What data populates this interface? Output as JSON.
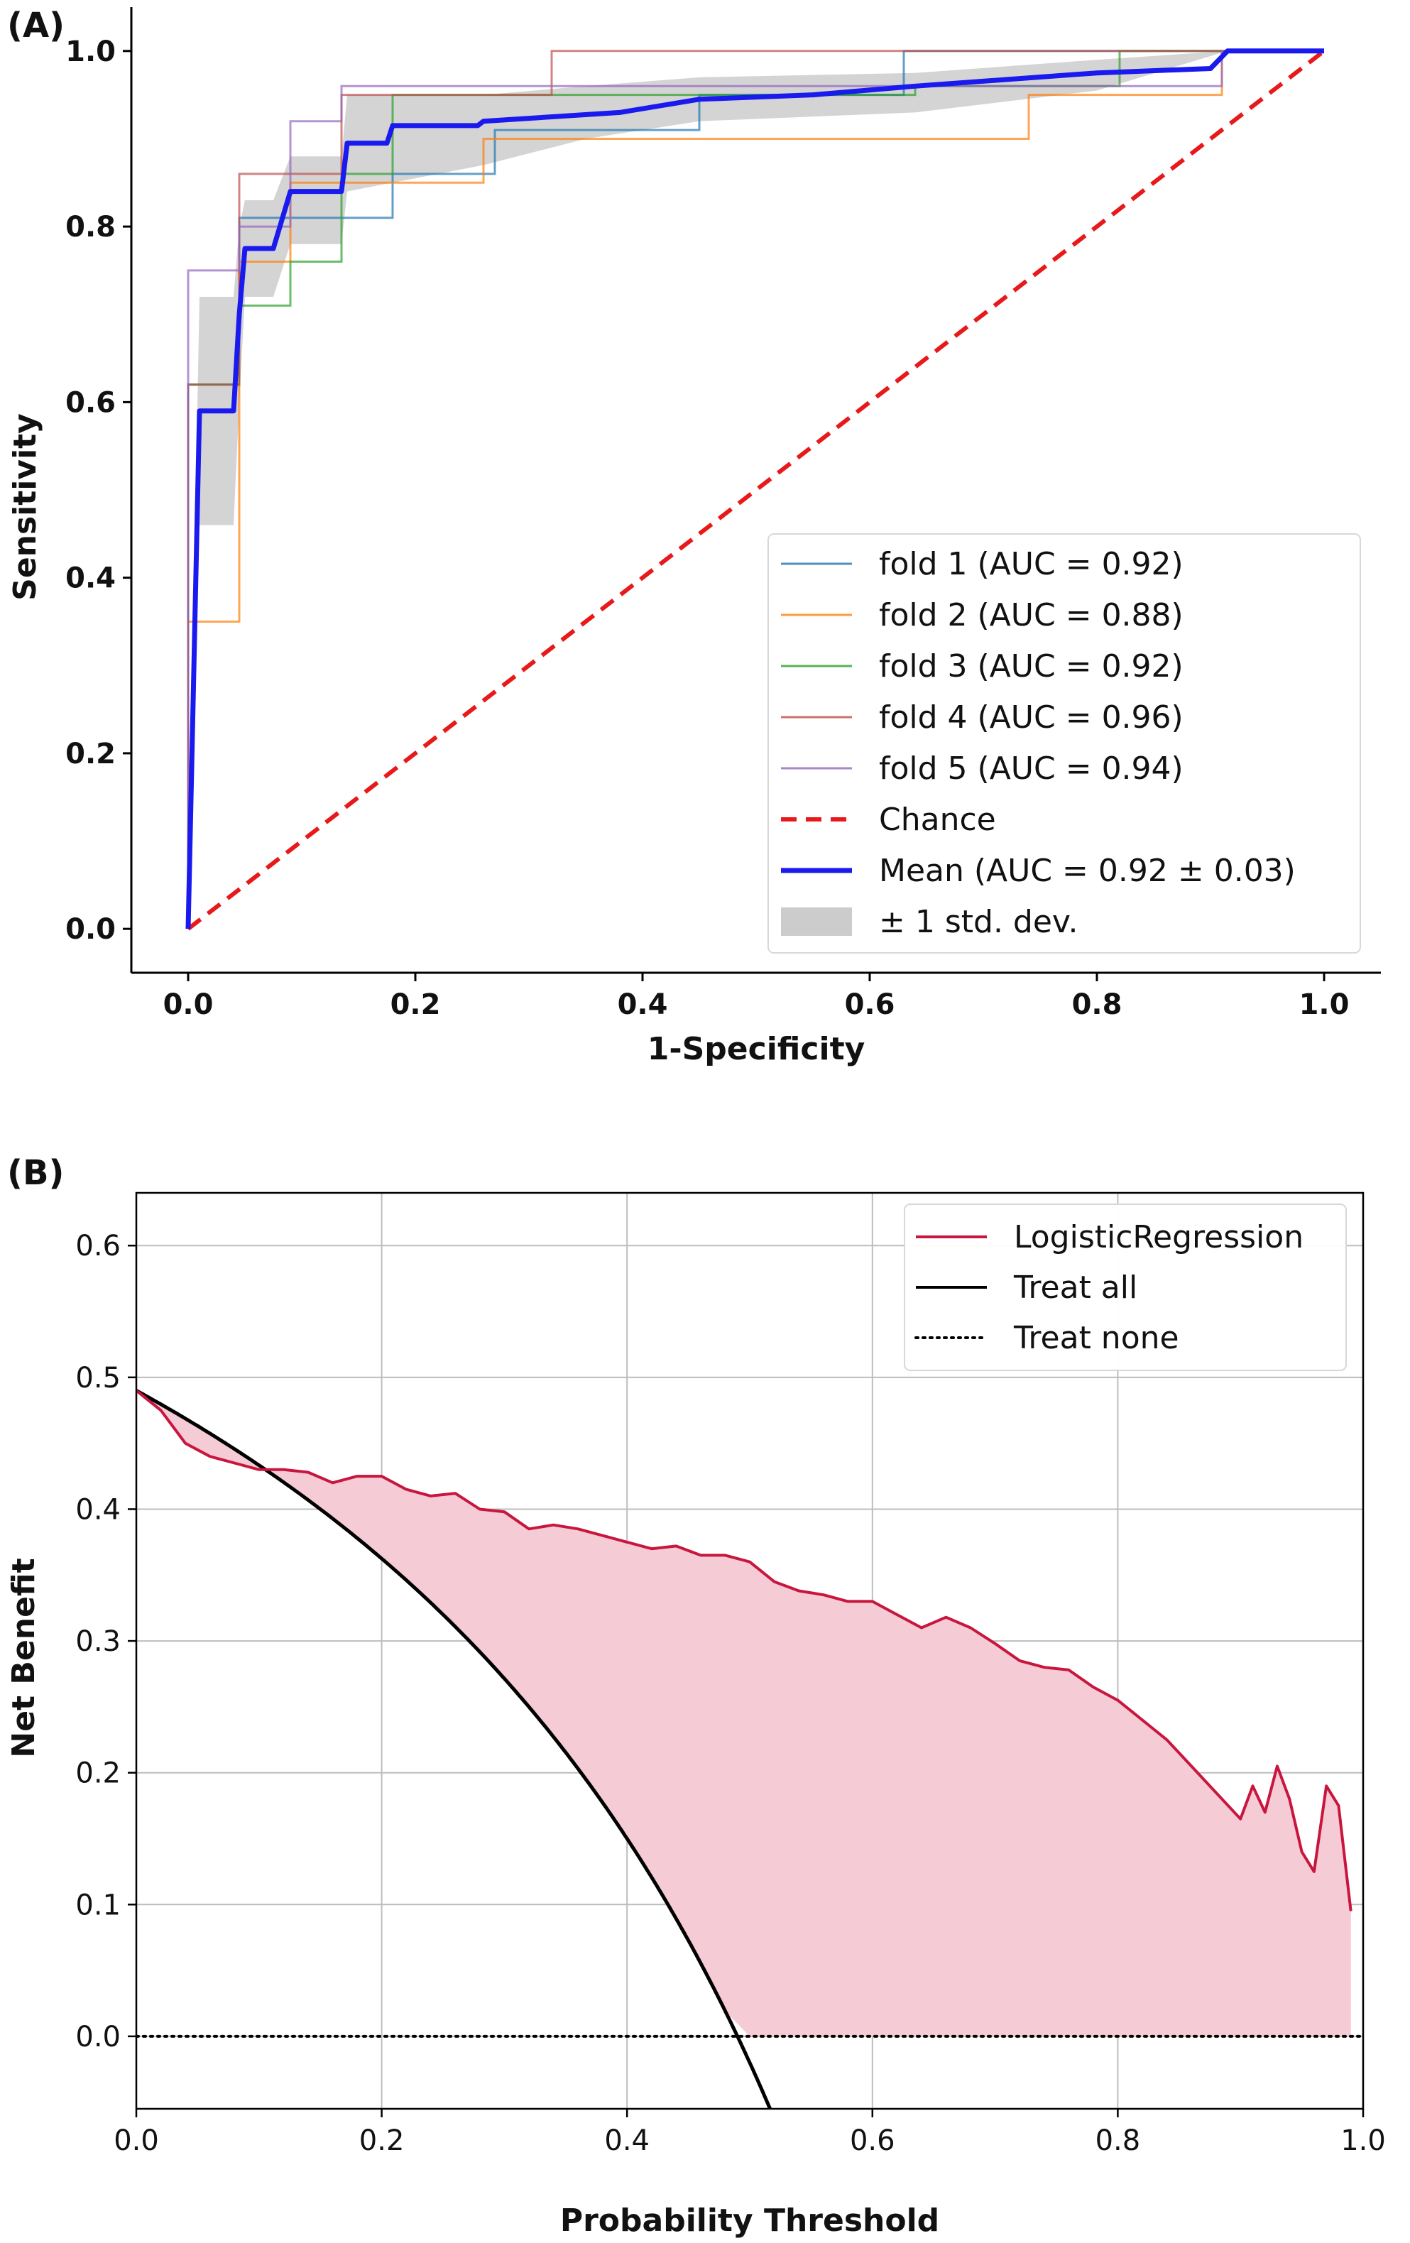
{
  "chart_data": [
    {
      "panel_label": "(A)",
      "type": "line",
      "xlabel": "1-Specificity",
      "ylabel": "Sensitivity",
      "xlim": [
        -0.05,
        1.05
      ],
      "ylim": [
        -0.05,
        1.05
      ],
      "xticks": [
        "0.0",
        "0.2",
        "0.4",
        "0.6",
        "0.8",
        "1.0"
      ],
      "yticks": [
        "0.0",
        "0.2",
        "0.4",
        "0.6",
        "0.8",
        "1.0"
      ],
      "grid": false,
      "legend_position": "lower-right",
      "series": [
        {
          "name": "fold 1 (AUC = 0.92)",
          "color": "#1f77b4",
          "style": "step",
          "points": [
            [
              0,
              0
            ],
            [
              0,
              0.62
            ],
            [
              0.045,
              0.62
            ],
            [
              0.045,
              0.81
            ],
            [
              0.14,
              0.81
            ],
            [
              0.14,
              0.81
            ],
            [
              0.18,
              0.81
            ],
            [
              0.18,
              0.86
            ],
            [
              0.27,
              0.86
            ],
            [
              0.27,
              0.91
            ],
            [
              0.45,
              0.91
            ],
            [
              0.45,
              0.95
            ],
            [
              0.63,
              0.95
            ],
            [
              0.63,
              1.0
            ],
            [
              1.0,
              1.0
            ]
          ]
        },
        {
          "name": "fold 2 (AUC = 0.88)",
          "color": "#ff7f0e",
          "style": "step",
          "points": [
            [
              0,
              0
            ],
            [
              0,
              0.35
            ],
            [
              0.045,
              0.35
            ],
            [
              0.045,
              0.76
            ],
            [
              0.09,
              0.76
            ],
            [
              0.09,
              0.85
            ],
            [
              0.18,
              0.85
            ],
            [
              0.18,
              0.85
            ],
            [
              0.26,
              0.85
            ],
            [
              0.26,
              0.9
            ],
            [
              0.74,
              0.9
            ],
            [
              0.74,
              0.95
            ],
            [
              0.91,
              0.95
            ],
            [
              0.91,
              1.0
            ],
            [
              1.0,
              1.0
            ]
          ]
        },
        {
          "name": "fold 3 (AUC = 0.92)",
          "color": "#2ca02c",
          "style": "step",
          "points": [
            [
              0,
              0
            ],
            [
              0,
              0.62
            ],
            [
              0.045,
              0.62
            ],
            [
              0.045,
              0.71
            ],
            [
              0.09,
              0.71
            ],
            [
              0.09,
              0.76
            ],
            [
              0.135,
              0.76
            ],
            [
              0.135,
              0.86
            ],
            [
              0.18,
              0.86
            ],
            [
              0.18,
              0.95
            ],
            [
              0.64,
              0.95
            ],
            [
              0.64,
              0.96
            ],
            [
              0.82,
              0.96
            ],
            [
              0.82,
              1.0
            ],
            [
              1.0,
              1.0
            ]
          ]
        },
        {
          "name": "fold 4 (AUC = 0.96)",
          "color": "#c0504d",
          "style": "step",
          "points": [
            [
              0,
              0
            ],
            [
              0,
              0.62
            ],
            [
              0.045,
              0.62
            ],
            [
              0.045,
              0.86
            ],
            [
              0.09,
              0.86
            ],
            [
              0.09,
              0.86
            ],
            [
              0.135,
              0.86
            ],
            [
              0.135,
              0.95
            ],
            [
              0.32,
              0.95
            ],
            [
              0.32,
              1.0
            ],
            [
              1.0,
              1.0
            ]
          ]
        },
        {
          "name": "fold 5 (AUC = 0.94)",
          "color": "#9467bd",
          "style": "step",
          "points": [
            [
              0,
              0
            ],
            [
              0,
              0.75
            ],
            [
              0.045,
              0.75
            ],
            [
              0.045,
              0.8
            ],
            [
              0.09,
              0.8
            ],
            [
              0.09,
              0.92
            ],
            [
              0.135,
              0.92
            ],
            [
              0.135,
              0.96
            ],
            [
              0.91,
              0.96
            ],
            [
              0.91,
              1.0
            ],
            [
              1.0,
              1.0
            ]
          ]
        },
        {
          "name": "Chance",
          "color": "#e8191a",
          "style": "dashed",
          "points": [
            [
              0,
              0
            ],
            [
              1,
              1
            ]
          ]
        },
        {
          "name": "Mean (AUC = 0.92 ± 0.03)",
          "color": "#1a1aee",
          "style": "thick",
          "points": [
            [
              0,
              0
            ],
            [
              0.01,
              0.59
            ],
            [
              0.04,
              0.59
            ],
            [
              0.045,
              0.7
            ],
            [
              0.05,
              0.775
            ],
            [
              0.075,
              0.775
            ],
            [
              0.09,
              0.84
            ],
            [
              0.135,
              0.84
            ],
            [
              0.14,
              0.895
            ],
            [
              0.175,
              0.895
            ],
            [
              0.18,
              0.915
            ],
            [
              0.255,
              0.915
            ],
            [
              0.26,
              0.92
            ],
            [
              0.38,
              0.93
            ],
            [
              0.45,
              0.945
            ],
            [
              0.55,
              0.95
            ],
            [
              0.64,
              0.96
            ],
            [
              0.8,
              0.975
            ],
            [
              0.9,
              0.98
            ],
            [
              0.915,
              1.0
            ],
            [
              1.0,
              1.0
            ]
          ]
        },
        {
          "name": "± 1 std. dev.",
          "color": "#cccccc",
          "style": "band",
          "upper": [
            [
              0,
              0.05
            ],
            [
              0.01,
              0.72
            ],
            [
              0.04,
              0.72
            ],
            [
              0.045,
              0.8
            ],
            [
              0.05,
              0.83
            ],
            [
              0.075,
              0.83
            ],
            [
              0.09,
              0.88
            ],
            [
              0.135,
              0.88
            ],
            [
              0.14,
              0.95
            ],
            [
              0.26,
              0.95
            ],
            [
              0.35,
              0.96
            ],
            [
              0.45,
              0.97
            ],
            [
              0.64,
              0.975
            ],
            [
              0.8,
              0.99
            ],
            [
              0.915,
              1.0
            ],
            [
              1.0,
              1.0
            ]
          ],
          "lower": [
            [
              0,
              0
            ],
            [
              0.01,
              0.46
            ],
            [
              0.04,
              0.46
            ],
            [
              0.045,
              0.6
            ],
            [
              0.05,
              0.72
            ],
            [
              0.075,
              0.72
            ],
            [
              0.09,
              0.78
            ],
            [
              0.135,
              0.78
            ],
            [
              0.14,
              0.84
            ],
            [
              0.26,
              0.87
            ],
            [
              0.35,
              0.9
            ],
            [
              0.45,
              0.92
            ],
            [
              0.64,
              0.93
            ],
            [
              0.8,
              0.955
            ],
            [
              0.915,
              1.0
            ],
            [
              1.0,
              1.0
            ]
          ]
        }
      ]
    },
    {
      "panel_label": "(B)",
      "type": "line",
      "xlabel": "Probability Threshold",
      "ylabel": "Net Benefit",
      "xlim": [
        0.0,
        1.0
      ],
      "ylim": [
        -0.055,
        0.64
      ],
      "xticks": [
        "0.0",
        "0.2",
        "0.4",
        "0.6",
        "0.8",
        "1.0"
      ],
      "yticks": [
        "0.0",
        "0.1",
        "0.2",
        "0.3",
        "0.4",
        "0.5",
        "0.6"
      ],
      "grid": true,
      "legend_position": "top-right",
      "series": [
        {
          "name": "LogisticRegression",
          "color": "#c8163e",
          "fill": "#f5cbd5",
          "x": [
            0.0,
            0.02,
            0.04,
            0.06,
            0.08,
            0.1,
            0.12,
            0.14,
            0.16,
            0.18,
            0.2,
            0.22,
            0.24,
            0.26,
            0.28,
            0.3,
            0.32,
            0.34,
            0.36,
            0.38,
            0.4,
            0.42,
            0.44,
            0.46,
            0.48,
            0.5,
            0.52,
            0.54,
            0.56,
            0.58,
            0.6,
            0.62,
            0.64,
            0.66,
            0.68,
            0.7,
            0.72,
            0.74,
            0.76,
            0.78,
            0.8,
            0.82,
            0.84,
            0.86,
            0.88,
            0.9,
            0.91,
            0.92,
            0.93,
            0.94,
            0.95,
            0.96,
            0.97,
            0.98,
            0.99
          ],
          "y": [
            0.49,
            0.475,
            0.45,
            0.44,
            0.435,
            0.43,
            0.43,
            0.428,
            0.42,
            0.425,
            0.425,
            0.415,
            0.41,
            0.412,
            0.4,
            0.398,
            0.385,
            0.388,
            0.385,
            0.38,
            0.375,
            0.37,
            0.372,
            0.365,
            0.365,
            0.36,
            0.345,
            0.338,
            0.335,
            0.33,
            0.33,
            0.32,
            0.31,
            0.318,
            0.31,
            0.298,
            0.285,
            0.28,
            0.278,
            0.265,
            0.255,
            0.24,
            0.225,
            0.205,
            0.185,
            0.165,
            0.19,
            0.17,
            0.205,
            0.18,
            0.14,
            0.125,
            0.19,
            0.175,
            0.095
          ]
        },
        {
          "name": "Treat all",
          "color": "#000000",
          "style": "solid",
          "prevalence": 0.49
        },
        {
          "name": "Treat none",
          "color": "#000000",
          "style": "dotted",
          "y_constant": 0.0
        }
      ]
    }
  ]
}
